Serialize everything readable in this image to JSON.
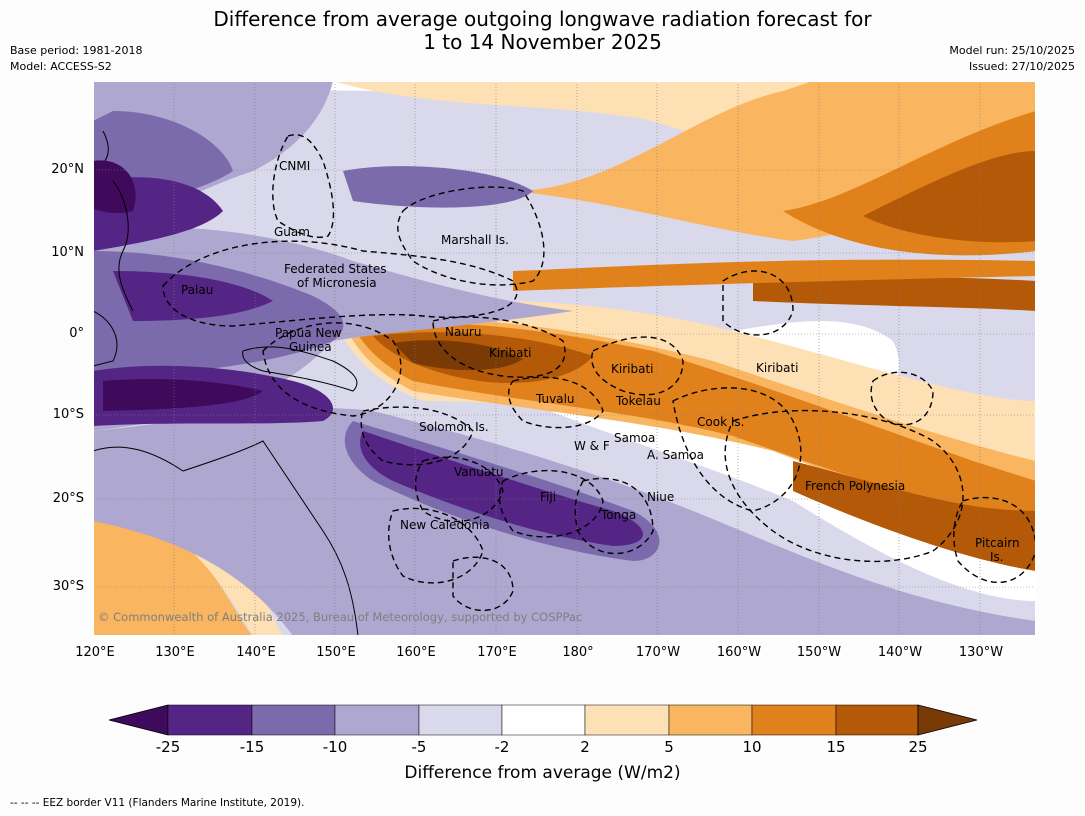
{
  "header": {
    "title_line1": "Difference from average outgoing longwave radiation forecast for",
    "title_line2": "1 to 14 November 2025",
    "base_period": "Base period: 1981-2018",
    "model": "Model: ACCESS-S2",
    "model_run": "Model run: 25/10/2025",
    "issued": "Issued: 27/10/2025"
  },
  "map": {
    "lat_labels": [
      "20°N",
      "10°N",
      "0°",
      "10°S",
      "20°S",
      "30°S"
    ],
    "lon_labels": [
      "120°E",
      "130°E",
      "140°E",
      "150°E",
      "160°E",
      "170°E",
      "180°",
      "170°W",
      "160°W",
      "150°W",
      "140°W",
      "130°W"
    ],
    "regions": [
      "CNMI",
      "Guam",
      "Marshall Is.",
      "Federated States",
      "of Micronesia",
      "Palau",
      "Papua New",
      "Guinea",
      "Nauru",
      "Kiribati",
      "Kiribati",
      "Kiribati",
      "Tuvalu",
      "Tokelau",
      "Cook Is.",
      "Solomon Is.",
      "Samoa",
      "W & F",
      "A. Samoa",
      "Vanuatu",
      "Fiji",
      "Niue",
      "Tonga",
      "French Polynesia",
      "New Caledonia",
      "Pitcairn",
      "Is."
    ],
    "copyright": "© Commonwealth of Australia 2025, Bureau of Meteorology, supported by COSPPac"
  },
  "colorbar": {
    "labels": [
      "-25",
      "-15",
      "-10",
      "-5",
      "-2",
      "2",
      "5",
      "10",
      "15",
      "25"
    ],
    "colors": [
      "#3f0a5c",
      "#552586",
      "#7c6bac",
      "#aea7cf",
      "#d9d9eb",
      "#ffffff",
      "#fde0b4",
      "#f9b55f",
      "#e0811b",
      "#b35907",
      "#7a3a05"
    ],
    "title": "Difference from average (W/m2)"
  },
  "footnote": "--  --  -- EEZ border V11 (Flanders Marine Institute, 2019)."
}
